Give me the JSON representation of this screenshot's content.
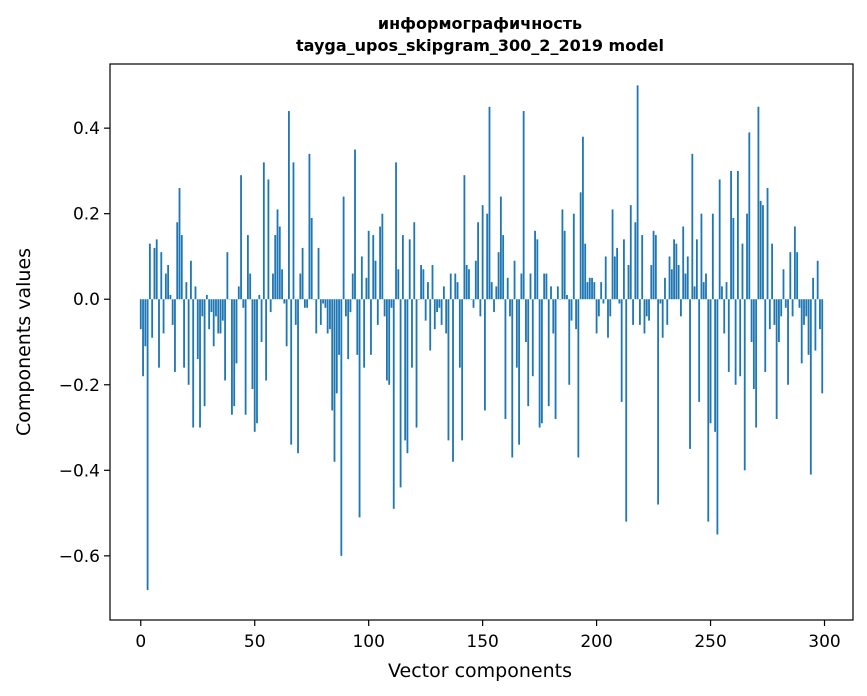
{
  "chart_data": {
    "type": "bar",
    "title": "информографичность",
    "subtitle": "tayga_upos_skipgram_300_2_2019 model",
    "xlabel": "Vector components",
    "ylabel": "Components values",
    "xlim": [
      -13.5,
      312.5
    ],
    "ylim": [
      -0.75,
      0.55
    ],
    "xticks": [
      0,
      50,
      100,
      150,
      200,
      250,
      300
    ],
    "yticks": [
      -0.6,
      -0.4,
      -0.2,
      0.0,
      0.2,
      0.4
    ],
    "ytick_labels": [
      "−0.6",
      "−0.4",
      "−0.2",
      "0.0",
      "0.2",
      "0.4"
    ],
    "bar_color": "#1f77b4",
    "values": [
      -0.07,
      -0.18,
      -0.11,
      -0.68,
      0.13,
      -0.09,
      0.12,
      0.14,
      -0.16,
      0.11,
      -0.08,
      0.06,
      0.08,
      0.01,
      -0.06,
      -0.17,
      0.18,
      0.26,
      0.15,
      -0.16,
      0.04,
      -0.2,
      0.09,
      -0.3,
      0.03,
      -0.14,
      -0.3,
      -0.04,
      -0.25,
      0.01,
      -0.07,
      -0.03,
      -0.11,
      -0.04,
      -0.08,
      -0.08,
      -0.05,
      -0.19,
      0.11,
      0.0,
      -0.27,
      -0.25,
      -0.15,
      0.03,
      0.29,
      -0.02,
      -0.27,
      0.15,
      0.06,
      -0.21,
      -0.31,
      -0.29,
      0.01,
      -0.1,
      0.32,
      -0.19,
      0.28,
      -0.03,
      0.06,
      0.15,
      0.21,
      0.17,
      0.07,
      -0.01,
      -0.11,
      0.44,
      -0.34,
      0.32,
      -0.06,
      -0.36,
      0.06,
      0.12,
      -0.02,
      -0.02,
      0.34,
      0.19,
      0.0,
      -0.08,
      0.12,
      -0.06,
      -0.01,
      -0.02,
      -0.08,
      -0.07,
      -0.26,
      -0.38,
      -0.22,
      -0.13,
      -0.6,
      0.24,
      -0.04,
      -0.14,
      -0.03,
      0.06,
      0.35,
      -0.13,
      -0.51,
      0.1,
      -0.16,
      0.05,
      0.16,
      -0.13,
      0.15,
      0.09,
      -0.06,
      0.17,
      0.2,
      -0.04,
      -0.19,
      -0.2,
      -0.02,
      -0.49,
      0.32,
      0.07,
      -0.44,
      0.15,
      -0.33,
      -0.36,
      0.14,
      -0.16,
      0.18,
      -0.3,
      0.0,
      0.08,
      0.07,
      -0.05,
      0.04,
      -0.12,
      0.08,
      -0.07,
      -0.03,
      -0.02,
      -0.06,
      0.03,
      -0.08,
      -0.33,
      0.06,
      -0.38,
      0.06,
      0.04,
      -0.16,
      -0.33,
      0.29,
      0.08,
      0.07,
      0.0,
      -0.02,
      0.09,
      0.18,
      -0.04,
      0.22,
      -0.26,
      0.2,
      0.45,
      0.04,
      -0.03,
      0.03,
      0.11,
      0.24,
      0.15,
      -0.28,
      0.05,
      -0.04,
      -0.37,
      0.09,
      -0.16,
      -0.34,
      0.06,
      0.44,
      -0.1,
      -0.25,
      0.06,
      -0.18,
      0.16,
      0.14,
      -0.3,
      -0.29,
      0.06,
      0.06,
      -0.25,
      0.03,
      -0.08,
      -0.28,
      0.03,
      0.0,
      0.21,
      0.16,
      0.01,
      -0.2,
      -0.05,
      0.2,
      -0.07,
      -0.37,
      0.25,
      0.38,
      0.13,
      0.04,
      0.05,
      0.05,
      0.04,
      -0.08,
      -0.04,
      0.04,
      -0.01,
      0.1,
      -0.09,
      -0.04,
      0.21,
      0.1,
      0.12,
      -0.01,
      -0.24,
      0.14,
      -0.52,
      0.08,
      0.22,
      -0.06,
      0.18,
      0.5,
      -0.06,
      0.15,
      -0.08,
      -0.04,
      -0.05,
      0.08,
      0.16,
      0.15,
      -0.48,
      -0.01,
      -0.09,
      0.05,
      -0.06,
      0.1,
      0.07,
      0.14,
      0.13,
      0.08,
      -0.04,
      0.17,
      0.06,
      0.1,
      -0.35,
      0.34,
      0.03,
      0.14,
      -0.24,
      0.2,
      0.04,
      0.06,
      -0.52,
      -0.29,
      0.2,
      -0.31,
      -0.55,
      0.28,
      0.03,
      -0.08,
      0.04,
      -0.17,
      0.3,
      0.19,
      -0.2,
      0.3,
      -0.18,
      0.13,
      -0.4,
      0.2,
      0.39,
      -0.1,
      -0.21,
      -0.3,
      0.45,
      0.23,
      0.22,
      -0.17,
      0.26,
      -0.07,
      0.13,
      -0.06,
      -0.28,
      -0.1,
      -0.04,
      0.07,
      -0.02,
      -0.2,
      0.11,
      -0.04,
      0.17,
      0.11,
      -0.02,
      -0.15,
      -0.06,
      -0.04,
      -0.13,
      -0.41,
      0.05,
      -0.12,
      0.09,
      -0.07,
      -0.22
    ]
  }
}
